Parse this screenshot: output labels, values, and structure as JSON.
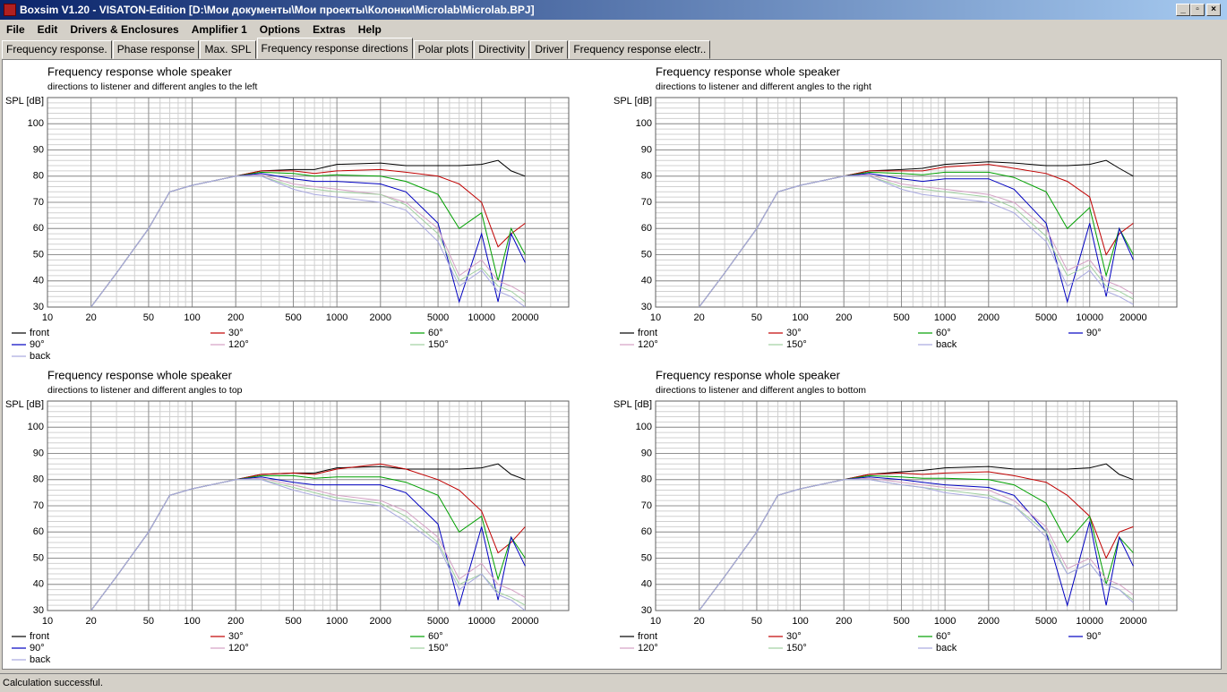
{
  "window": {
    "title": "Boxsim V1.20 - VISATON-Edition [D:\\Мои документы\\Мои проекты\\Колонки\\Microlab\\Microlab.BPJ]"
  },
  "menu": [
    "File",
    "Edit",
    "Drivers & Enclosures",
    "Amplifier 1",
    "Options",
    "Extras",
    "Help"
  ],
  "tabs": [
    "Frequency response.",
    "Phase response",
    "Max. SPL",
    "Frequency response directions",
    "Polar plots",
    "Directivity",
    "Driver",
    "Frequency response electr.."
  ],
  "active_tab": 3,
  "status": "Calculation successful.",
  "chart_data": [
    {
      "type": "line",
      "title": "Frequency response whole speaker",
      "subtitle": "directions to listener and different angles to the left",
      "y_label": "SPL [dB]",
      "x_scale": "log",
      "grid": true,
      "xlim": [
        10,
        40000
      ],
      "ylim": [
        30,
        110
      ],
      "xticks": [
        10,
        20,
        50,
        100,
        200,
        500,
        1000,
        2000,
        5000,
        10000,
        20000
      ],
      "yticks": [
        30,
        40,
        50,
        60,
        70,
        80,
        90,
        100
      ],
      "x": [
        20,
        30,
        50,
        70,
        100,
        200,
        300,
        500,
        700,
        1000,
        2000,
        3000,
        5000,
        7000,
        10000,
        13000,
        16000,
        20000
      ],
      "series": [
        {
          "name": "front",
          "color": "#000000",
          "values": [
            30,
            43,
            60,
            74,
            76.5,
            80,
            82,
            82.5,
            82.5,
            84.5,
            85,
            84,
            84,
            84,
            84.5,
            86,
            82,
            80
          ]
        },
        {
          "name": "30°",
          "color": "#c00000",
          "values": [
            30,
            43,
            60,
            74,
            76.5,
            80,
            82,
            82,
            81,
            82,
            82.5,
            81.5,
            80,
            77,
            70,
            53,
            58,
            62
          ]
        },
        {
          "name": "60°",
          "color": "#00a000",
          "values": [
            30,
            43,
            60,
            74,
            76.5,
            80,
            81.5,
            81,
            80,
            80.5,
            80,
            78,
            73,
            60,
            66,
            40,
            60,
            50
          ]
        },
        {
          "name": "90°",
          "color": "#0000c0",
          "values": [
            30,
            43,
            60,
            74,
            76.5,
            80,
            81,
            79,
            78,
            78,
            77,
            74,
            62,
            32,
            58,
            32,
            58,
            47
          ]
        },
        {
          "name": "120°",
          "color": "#d4a0c4",
          "values": [
            30,
            43,
            60,
            74,
            76.5,
            80,
            80.5,
            77,
            76,
            75,
            73,
            70,
            60,
            42,
            48,
            40,
            38,
            35
          ]
        },
        {
          "name": "150°",
          "color": "#a0d0a0",
          "values": [
            30,
            43,
            60,
            74,
            76.5,
            80,
            80,
            76,
            75,
            74,
            73,
            69,
            58,
            40,
            45,
            38,
            36,
            32
          ]
        },
        {
          "name": "back",
          "color": "#a8a8e0",
          "values": [
            30,
            43,
            60,
            74,
            76.5,
            80,
            80,
            75,
            73,
            72,
            70,
            67,
            55,
            38,
            44,
            36,
            34,
            30
          ]
        }
      ]
    },
    {
      "type": "line",
      "title": "Frequency response whole speaker",
      "subtitle": "directions to listener and different angles to the right",
      "y_label": "SPL [dB]",
      "x_scale": "log",
      "grid": true,
      "xlim": [
        10,
        40000
      ],
      "ylim": [
        30,
        110
      ],
      "xticks": [
        10,
        20,
        50,
        100,
        200,
        500,
        1000,
        2000,
        5000,
        10000,
        20000
      ],
      "yticks": [
        30,
        40,
        50,
        60,
        70,
        80,
        90,
        100
      ],
      "x": [
        20,
        30,
        50,
        70,
        100,
        200,
        300,
        500,
        700,
        1000,
        2000,
        3000,
        5000,
        7000,
        10000,
        13000,
        16000,
        20000
      ],
      "series": [
        {
          "name": "front",
          "color": "#000000",
          "values": [
            30,
            43,
            60,
            74,
            76.5,
            80,
            82,
            82.5,
            83,
            84.5,
            85.5,
            85,
            84,
            84,
            84.5,
            86,
            83,
            80
          ]
        },
        {
          "name": "30°",
          "color": "#c00000",
          "values": [
            30,
            43,
            60,
            74,
            76.5,
            80,
            82,
            82,
            82,
            83.5,
            84.5,
            83,
            81,
            78,
            72,
            50,
            58,
            62
          ]
        },
        {
          "name": "60°",
          "color": "#00a000",
          "values": [
            30,
            43,
            60,
            74,
            76.5,
            80,
            81.5,
            81,
            80.5,
            81.5,
            81.5,
            79.5,
            74,
            60,
            68,
            42,
            60,
            50
          ]
        },
        {
          "name": "90°",
          "color": "#0000c0",
          "values": [
            30,
            43,
            60,
            74,
            76.5,
            80,
            81,
            79,
            78,
            79,
            79,
            75,
            62,
            32,
            62,
            34,
            60,
            48
          ]
        },
        {
          "name": "120°",
          "color": "#d4a0c4",
          "values": [
            30,
            43,
            60,
            74,
            76.5,
            80,
            80.5,
            77,
            76,
            75,
            73,
            70,
            60,
            44,
            48,
            40,
            38,
            35
          ]
        },
        {
          "name": "150°",
          "color": "#a0d0a0",
          "values": [
            30,
            43,
            60,
            74,
            76.5,
            80,
            80,
            76,
            75,
            74,
            72,
            68,
            57,
            42,
            46,
            38,
            36,
            33
          ]
        },
        {
          "name": "back",
          "color": "#a8a8e0",
          "values": [
            30,
            43,
            60,
            74,
            76.5,
            80,
            80,
            75,
            73,
            72,
            70,
            66,
            55,
            38,
            44,
            36,
            34,
            31
          ]
        }
      ]
    },
    {
      "type": "line",
      "title": "Frequency response whole speaker",
      "subtitle": "directions to listener and different angles to top",
      "y_label": "SPL [dB]",
      "x_scale": "log",
      "grid": true,
      "xlim": [
        10,
        40000
      ],
      "ylim": [
        30,
        110
      ],
      "xticks": [
        10,
        20,
        50,
        100,
        200,
        500,
        1000,
        2000,
        5000,
        10000,
        20000
      ],
      "yticks": [
        30,
        40,
        50,
        60,
        70,
        80,
        90,
        100
      ],
      "x": [
        20,
        30,
        50,
        70,
        100,
        200,
        300,
        500,
        700,
        1000,
        2000,
        3000,
        5000,
        7000,
        10000,
        13000,
        16000,
        20000
      ],
      "series": [
        {
          "name": "front",
          "color": "#000000",
          "values": [
            30,
            43,
            60,
            74,
            76.5,
            80,
            82,
            82.5,
            82.5,
            84.5,
            85,
            84,
            84,
            84,
            84.5,
            86,
            82,
            80
          ]
        },
        {
          "name": "30°",
          "color": "#c00000",
          "values": [
            30,
            43,
            60,
            74,
            76.5,
            80,
            82,
            82.5,
            82,
            84,
            86,
            84,
            80,
            76,
            68,
            52,
            56,
            62
          ]
        },
        {
          "name": "60°",
          "color": "#00a000",
          "values": [
            30,
            43,
            60,
            74,
            76.5,
            80,
            81.5,
            81.5,
            80.5,
            81,
            81,
            79,
            74,
            60,
            66,
            42,
            58,
            50
          ]
        },
        {
          "name": "90°",
          "color": "#0000c0",
          "values": [
            30,
            43,
            60,
            74,
            76.5,
            80,
            81,
            79,
            78,
            78,
            78,
            75,
            63,
            32,
            62,
            34,
            58,
            47
          ]
        },
        {
          "name": "120°",
          "color": "#d4a0c4",
          "values": [
            30,
            43,
            60,
            74,
            76.5,
            80,
            80.5,
            78,
            76,
            74,
            72,
            68,
            58,
            42,
            48,
            40,
            38,
            35
          ]
        },
        {
          "name": "150°",
          "color": "#a0d0a0",
          "values": [
            30,
            43,
            60,
            74,
            76.5,
            80,
            80,
            77,
            75,
            73,
            71,
            66,
            56,
            40,
            44,
            37,
            35,
            32
          ]
        },
        {
          "name": "back",
          "color": "#a8a8e0",
          "values": [
            30,
            43,
            60,
            74,
            76.5,
            80,
            80,
            76,
            74,
            72,
            70,
            64,
            55,
            38,
            44,
            36,
            34,
            30
          ]
        }
      ]
    },
    {
      "type": "line",
      "title": "Frequency response whole speaker",
      "subtitle": "directions to listener and different angles to bottom",
      "y_label": "SPL [dB]",
      "x_scale": "log",
      "grid": true,
      "xlim": [
        10,
        40000
      ],
      "ylim": [
        30,
        110
      ],
      "xticks": [
        10,
        20,
        50,
        100,
        200,
        500,
        1000,
        2000,
        5000,
        10000,
        20000
      ],
      "yticks": [
        30,
        40,
        50,
        60,
        70,
        80,
        90,
        100
      ],
      "x": [
        20,
        30,
        50,
        70,
        100,
        200,
        300,
        500,
        700,
        1000,
        2000,
        3000,
        5000,
        7000,
        10000,
        13000,
        16000,
        20000
      ],
      "series": [
        {
          "name": "front",
          "color": "#000000",
          "values": [
            30,
            43,
            60,
            74,
            76.5,
            80,
            82,
            83,
            83.5,
            84.5,
            85,
            84,
            84,
            84,
            84.5,
            86,
            82,
            80
          ]
        },
        {
          "name": "30°",
          "color": "#c00000",
          "values": [
            30,
            43,
            60,
            74,
            76.5,
            80,
            82,
            82.5,
            82,
            82.5,
            83,
            81.5,
            79,
            74,
            66,
            50,
            60,
            62
          ]
        },
        {
          "name": "60°",
          "color": "#00a000",
          "values": [
            30,
            43,
            60,
            74,
            76.5,
            80,
            81.5,
            81,
            80.5,
            80.5,
            80,
            78,
            71,
            56,
            66,
            40,
            58,
            52
          ]
        },
        {
          "name": "90°",
          "color": "#0000c0",
          "values": [
            30,
            43,
            60,
            74,
            76.5,
            80,
            81,
            80,
            79,
            78,
            77,
            74,
            60,
            32,
            64,
            32,
            58,
            47
          ]
        },
        {
          "name": "120°",
          "color": "#d4a0c4",
          "values": [
            30,
            43,
            60,
            74,
            76.5,
            80,
            80.5,
            79,
            78,
            77,
            76,
            72,
            62,
            46,
            50,
            42,
            40,
            36
          ]
        },
        {
          "name": "150°",
          "color": "#a0d0a0",
          "values": [
            30,
            43,
            60,
            74,
            76.5,
            80,
            80,
            78,
            77,
            76,
            74,
            70,
            60,
            44,
            48,
            40,
            38,
            34
          ]
        },
        {
          "name": "back",
          "color": "#a8a8e0",
          "values": [
            30,
            43,
            60,
            74,
            76.5,
            80,
            80,
            78,
            77,
            75,
            73,
            70,
            58,
            44,
            48,
            40,
            38,
            33
          ]
        }
      ]
    }
  ]
}
